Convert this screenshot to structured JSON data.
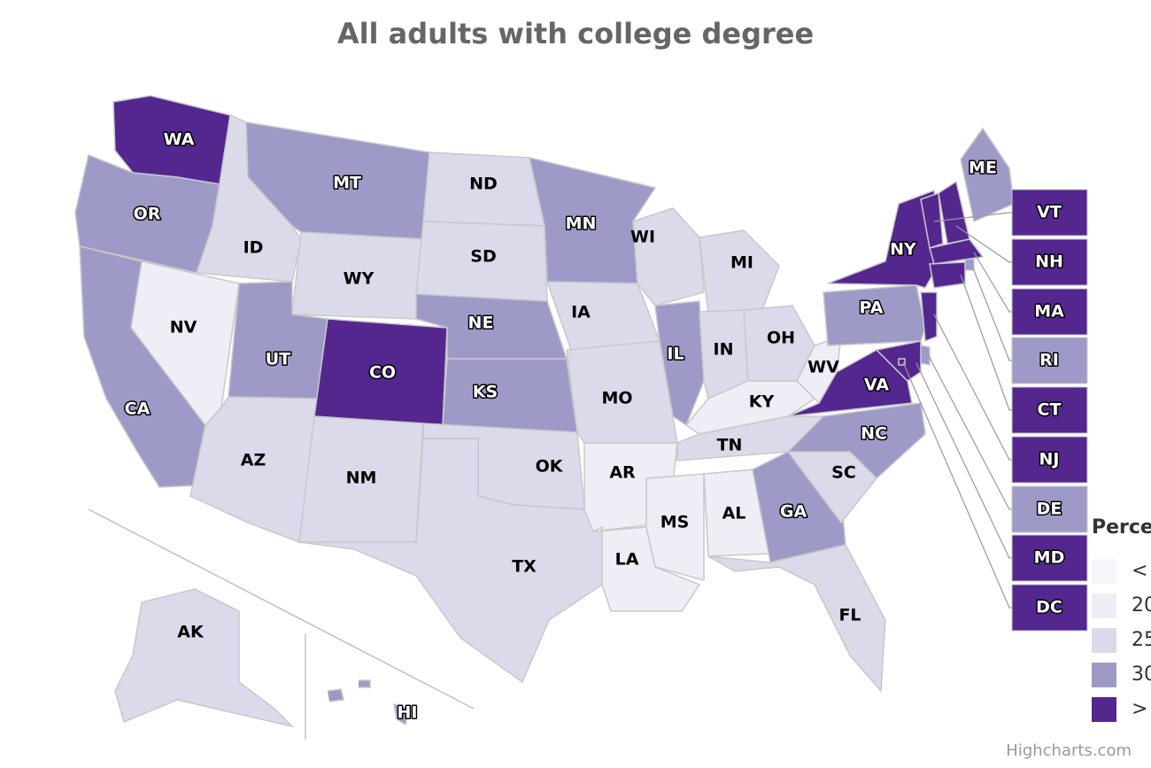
{
  "title": "All adults with college degree",
  "states": [
    {
      "label": "WA",
      "color": "#54278f"
    },
    {
      "label": "OR",
      "color": "#9e9ac8"
    },
    {
      "label": "CA",
      "color": "#9e9ac8"
    },
    {
      "label": "NV",
      "color": "#efedf5"
    },
    {
      "label": "ID",
      "color": "#dadaeb"
    },
    {
      "label": "MT",
      "color": "#9e9ac8"
    },
    {
      "label": "WY",
      "color": "#dadaeb"
    },
    {
      "label": "UT",
      "color": "#9e9ac8"
    },
    {
      "label": "AZ",
      "color": "#dadaeb"
    },
    {
      "label": "CO",
      "color": "#54278f"
    },
    {
      "label": "NM",
      "color": "#dadaeb"
    },
    {
      "label": "ND",
      "color": "#dadaeb"
    },
    {
      "label": "SD",
      "color": "#dadaeb"
    },
    {
      "label": "NE",
      "color": "#9e9ac8"
    },
    {
      "label": "KS",
      "color": "#9e9ac8"
    },
    {
      "label": "OK",
      "color": "#dadaeb"
    },
    {
      "label": "TX",
      "color": "#dadaeb"
    },
    {
      "label": "MN",
      "color": "#9e9ac8"
    },
    {
      "label": "IA",
      "color": "#dadaeb"
    },
    {
      "label": "MO",
      "color": "#dadaeb"
    },
    {
      "label": "AR",
      "color": "#efedf5"
    },
    {
      "label": "LA",
      "color": "#efedf5"
    },
    {
      "label": "WI",
      "color": "#dadaeb"
    },
    {
      "label": "IL",
      "color": "#9e9ac8"
    },
    {
      "label": "MI",
      "color": "#dadaeb"
    },
    {
      "label": "IN",
      "color": "#dadaeb"
    },
    {
      "label": "OH",
      "color": "#dadaeb"
    },
    {
      "label": "KY",
      "color": "#efedf5"
    },
    {
      "label": "WV",
      "color": "#efedf5"
    },
    {
      "label": "TN",
      "color": "#dadaeb"
    },
    {
      "label": "MS",
      "color": "#efedf5"
    },
    {
      "label": "AL",
      "color": "#efedf5"
    },
    {
      "label": "GA",
      "color": "#9e9ac8"
    },
    {
      "label": "FL",
      "color": "#dadaeb"
    },
    {
      "label": "SC",
      "color": "#dadaeb"
    },
    {
      "label": "NC",
      "color": "#9e9ac8"
    },
    {
      "label": "VA",
      "color": "#54278f"
    },
    {
      "label": "PA",
      "color": "#9e9ac8"
    },
    {
      "label": "NY",
      "color": "#54278f"
    },
    {
      "label": "ME",
      "color": "#9e9ac8"
    },
    {
      "label": "VT",
      "color": "#54278f"
    },
    {
      "label": "NH",
      "color": "#54278f"
    },
    {
      "label": "MA",
      "color": "#54278f"
    },
    {
      "label": "RI",
      "color": "#9e9ac8"
    },
    {
      "label": "CT",
      "color": "#54278f"
    },
    {
      "label": "NJ",
      "color": "#54278f"
    },
    {
      "label": "DE",
      "color": "#9e9ac8"
    },
    {
      "label": "MD",
      "color": "#54278f"
    },
    {
      "label": "DC",
      "color": "#54278f"
    },
    {
      "label": "AK",
      "color": "#dadaeb"
    },
    {
      "label": "HI",
      "color": "#9e9ac8"
    }
  ],
  "legend": {
    "title": "Perce",
    "items": [
      {
        "label": "<",
        "color": "#f7f6fb"
      },
      {
        "label": "20",
        "color": "#efedf5"
      },
      {
        "label": "25",
        "color": "#dadaeb"
      },
      {
        "label": "30",
        "color": "#9e9ac8"
      },
      {
        "label": ">",
        "color": "#54278f"
      }
    ]
  },
  "credit": "Highcharts.com"
}
